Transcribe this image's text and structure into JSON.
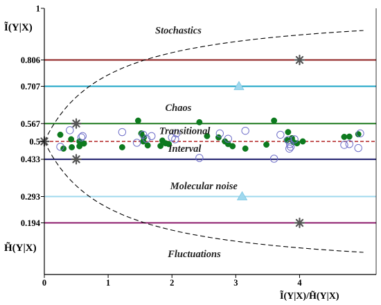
{
  "chart_data": {
    "type": "scatter",
    "title": "",
    "ylabel_top": "Ĩ(Y|X)",
    "ylabel_bottom": "H̃(Y|X)",
    "xlabel": "Ĩ(Y|X)/H̃(Y|X)",
    "xlim": [
      0,
      5.2
    ],
    "ylim": [
      0,
      1
    ],
    "x_ticks": [
      {
        "value": 0,
        "label": "0"
      },
      {
        "value": 1,
        "label": "1"
      },
      {
        "value": 2,
        "label": "2"
      },
      {
        "value": 3,
        "label": "3"
      },
      {
        "value": 4,
        "label": "4"
      }
    ],
    "y_ticks": [
      {
        "value": 1,
        "label": "1"
      },
      {
        "value": 0.806,
        "label": "0.806"
      },
      {
        "value": 0.707,
        "label": "0.707"
      },
      {
        "value": 0.567,
        "label": "0.567"
      },
      {
        "value": 0.5,
        "label": "0.5"
      },
      {
        "value": 0.433,
        "label": "0.433"
      },
      {
        "value": 0.293,
        "label": "0.293"
      },
      {
        "value": 0.194,
        "label": "0.194"
      }
    ],
    "reference_lines": [
      {
        "y": 0.806,
        "color": "#8b1a1a",
        "style": "solid"
      },
      {
        "y": 0.707,
        "color": "#1aa3c6",
        "style": "solid"
      },
      {
        "y": 0.567,
        "color": "#1f7a1f",
        "style": "solid"
      },
      {
        "y": 0.5,
        "color": "#b22222",
        "style": "dashed"
      },
      {
        "y": 0.433,
        "color": "#1a1a6b",
        "style": "solid"
      },
      {
        "y": 0.293,
        "color": "#9fd8ee",
        "style": "solid"
      },
      {
        "y": 0.194,
        "color": "#8b1a6b",
        "style": "solid"
      }
    ],
    "region_labels": [
      {
        "text": "Stochastics",
        "x": 2.1,
        "y": 0.905
      },
      {
        "text": "Chaos",
        "x": 2.1,
        "y": 0.615
      },
      {
        "text": "Transitional",
        "x": 2.2,
        "y": 0.527
      },
      {
        "text": "Interval",
        "x": 2.2,
        "y": 0.461
      },
      {
        "text": "Molecular noise",
        "x": 2.5,
        "y": 0.32
      },
      {
        "text": "Fluctuations",
        "x": 2.35,
        "y": 0.065
      }
    ],
    "envelope": {
      "style": "dashed",
      "color": "#000000",
      "x_max": 5.0
    },
    "star_markers": [
      {
        "x": 0,
        "y": 0.5
      },
      {
        "x": 0.5,
        "y": 0.567
      },
      {
        "x": 0.5,
        "y": 0.433
      },
      {
        "x": 4.0,
        "y": 0.806
      },
      {
        "x": 4.0,
        "y": 0.194
      }
    ],
    "triangle_markers": [
      {
        "x": 3.05,
        "y": 0.707
      },
      {
        "x": 3.1,
        "y": 0.293
      }
    ],
    "series": [
      {
        "marker": "filled-circle",
        "color": "#0d7a1e",
        "points": [
          [
            0.25,
            0.525
          ],
          [
            0.42,
            0.508
          ],
          [
            0.55,
            0.5
          ],
          [
            0.3,
            0.473
          ],
          [
            0.43,
            0.478
          ],
          [
            0.55,
            0.482
          ],
          [
            0.62,
            0.492
          ],
          [
            1.22,
            0.478
          ],
          [
            1.47,
            0.578
          ],
          [
            1.52,
            0.53
          ],
          [
            1.56,
            0.515
          ],
          [
            1.55,
            0.5
          ],
          [
            1.62,
            0.485
          ],
          [
            1.85,
            0.503
          ],
          [
            1.9,
            0.493
          ],
          [
            1.95,
            0.49
          ],
          [
            1.82,
            0.483
          ],
          [
            2.43,
            0.572
          ],
          [
            2.55,
            0.52
          ],
          [
            2.73,
            0.515
          ],
          [
            2.83,
            0.5
          ],
          [
            2.88,
            0.49
          ],
          [
            2.95,
            0.482
          ],
          [
            3.15,
            0.473
          ],
          [
            3.48,
            0.488
          ],
          [
            3.6,
            0.578
          ],
          [
            3.8,
            0.505
          ],
          [
            3.82,
            0.535
          ],
          [
            3.88,
            0.512
          ],
          [
            3.9,
            0.498
          ],
          [
            3.96,
            0.493
          ],
          [
            4.05,
            0.5
          ],
          [
            4.7,
            0.517
          ],
          [
            4.78,
            0.518
          ],
          [
            4.92,
            0.527
          ]
        ]
      },
      {
        "marker": "open-circle",
        "color": "#6e6ec8",
        "points": [
          [
            0.25,
            0.48
          ],
          [
            0.4,
            0.542
          ],
          [
            0.6,
            0.52
          ],
          [
            0.58,
            0.515
          ],
          [
            1.22,
            0.535
          ],
          [
            1.45,
            0.495
          ],
          [
            1.55,
            0.525
          ],
          [
            1.6,
            0.51
          ],
          [
            1.68,
            0.52
          ],
          [
            2.0,
            0.515
          ],
          [
            2.05,
            0.508
          ],
          [
            2.07,
            0.53
          ],
          [
            2.43,
            0.438
          ],
          [
            2.75,
            0.53
          ],
          [
            2.88,
            0.51
          ],
          [
            3.15,
            0.54
          ],
          [
            3.6,
            0.435
          ],
          [
            3.7,
            0.525
          ],
          [
            3.82,
            0.505
          ],
          [
            3.85,
            0.49
          ],
          [
            3.84,
            0.473
          ],
          [
            3.86,
            0.48
          ],
          [
            3.92,
            0.508
          ],
          [
            4.7,
            0.487
          ],
          [
            4.78,
            0.49
          ],
          [
            4.92,
            0.475
          ],
          [
            4.95,
            0.53
          ]
        ]
      }
    ]
  }
}
